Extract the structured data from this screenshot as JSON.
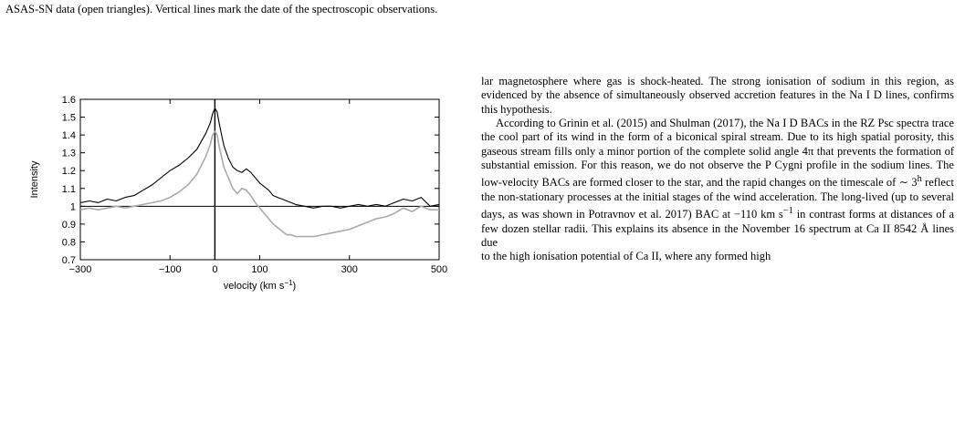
{
  "caption_top": "ASAS-SN data (open triangles). Vertical lines mark the date of the spectroscopic observations.",
  "chart_data": {
    "type": "line",
    "title": "",
    "xlabel": "velocity (km s",
    "xlabel_sup": "−1",
    "xlabel_close": ")",
    "ylabel": "Intensity",
    "xlim": [
      -300,
      500
    ],
    "ylim": [
      0.7,
      1.6
    ],
    "xticks": [
      -300,
      -100,
      0,
      100,
      300,
      500
    ],
    "xtick_labels": [
      "−300",
      "−100",
      "0",
      "100",
      "300",
      "500"
    ],
    "yticks": [
      0.7,
      0.8,
      0.9,
      1.0,
      1.1,
      1.2,
      1.3,
      1.4,
      1.5,
      1.6
    ],
    "ytick_labels": [
      "0.7",
      "0.8",
      "0.9",
      "1",
      "1.1",
      "1.2",
      "1.3",
      "1.4",
      "1.5",
      "1.6"
    ],
    "reference_lines": {
      "horizontal_y": 1.0,
      "vertical_x": 0
    },
    "series": [
      {
        "color": "#000000",
        "x": [
          -300,
          -280,
          -260,
          -240,
          -220,
          -200,
          -180,
          -160,
          -140,
          -120,
          -100,
          -80,
          -60,
          -40,
          -20,
          -10,
          -5,
          0,
          5,
          10,
          20,
          30,
          40,
          50,
          60,
          70,
          80,
          90,
          100,
          110,
          120,
          130,
          140,
          150,
          160,
          170,
          180,
          200,
          220,
          240,
          260,
          280,
          300,
          320,
          340,
          360,
          380,
          400,
          420,
          440,
          460,
          480,
          500
        ],
        "values": [
          1.02,
          1.03,
          1.02,
          1.04,
          1.03,
          1.05,
          1.06,
          1.09,
          1.12,
          1.16,
          1.2,
          1.23,
          1.27,
          1.32,
          1.41,
          1.47,
          1.52,
          1.55,
          1.53,
          1.46,
          1.34,
          1.27,
          1.22,
          1.2,
          1.19,
          1.21,
          1.19,
          1.16,
          1.13,
          1.11,
          1.09,
          1.06,
          1.05,
          1.04,
          1.03,
          1.02,
          1.01,
          1.0,
          0.99,
          1.0,
          1.0,
          0.99,
          1.0,
          1.01,
          1.0,
          1.01,
          1.0,
          1.02,
          1.04,
          1.03,
          1.05,
          1.0,
          1.01
        ]
      },
      {
        "color": "#aaaaaa",
        "x": [
          -300,
          -280,
          -260,
          -240,
          -220,
          -200,
          -180,
          -160,
          -140,
          -120,
          -100,
          -80,
          -60,
          -40,
          -20,
          -10,
          -5,
          0,
          5,
          10,
          20,
          30,
          40,
          50,
          60,
          70,
          80,
          90,
          100,
          110,
          120,
          130,
          140,
          150,
          160,
          170,
          180,
          200,
          220,
          240,
          260,
          280,
          300,
          320,
          340,
          360,
          380,
          400,
          420,
          440,
          460,
          480,
          500
        ],
        "values": [
          0.98,
          0.99,
          0.98,
          0.99,
          1.0,
          0.99,
          1.0,
          1.01,
          1.02,
          1.03,
          1.05,
          1.08,
          1.12,
          1.18,
          1.28,
          1.35,
          1.4,
          1.42,
          1.4,
          1.33,
          1.22,
          1.16,
          1.1,
          1.07,
          1.1,
          1.09,
          1.06,
          1.02,
          0.99,
          0.96,
          0.93,
          0.9,
          0.88,
          0.86,
          0.84,
          0.84,
          0.83,
          0.83,
          0.83,
          0.84,
          0.85,
          0.86,
          0.87,
          0.89,
          0.91,
          0.93,
          0.94,
          0.96,
          0.99,
          0.97,
          1.0,
          0.98,
          0.98
        ]
      }
    ]
  },
  "body": {
    "p1": "lar magnetosphere where gas is shock-heated. The strong ionisation of sodium in this region, as evidenced by the absence of simultaneously observed accretion features in the Na I D lines, confirms this hypothesis.",
    "p2a": "According to Grinin et al. (2015) and Shulman (2017), the Na I D BACs in the RZ Psc spectra trace the cool part of its wind in the form of a biconical spiral stream. Due to its high spatial porosity, this gaseous stream fills only a minor portion of the complete solid angle 4π that prevents the formation of substantial emission. For this reason, we do not observe the P Cygni profile in the sodium lines. The low-velocity BACs are formed closer to the star, and the rapid changes on the timescale of ∼ 3",
    "p2_sup": "h",
    "p2b": " reflect the non-stationary processes at the initial stages of the wind acceleration. The long-lived (up to several days, as was shown in Potravnov et al. 2017) BAC at −110 km s",
    "p2_sup2": "−1",
    "p2c": " in contrast forms at distances of a few dozen stellar radii. This explains its absence in the November 16 spectrum at Ca II 8542 Å lines due",
    "p2_cut": "to the high ionisation potential of Ca II, where any formed high"
  }
}
